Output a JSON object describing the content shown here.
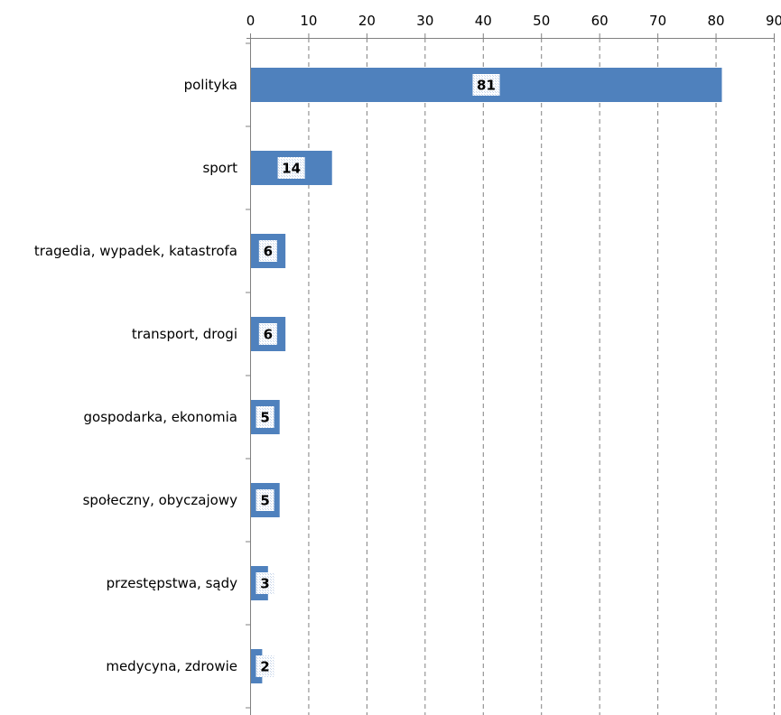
{
  "colors": {
    "bar": "#4f81bd",
    "label_box": "#dce6f1",
    "grid": "#808080",
    "axis": "#808080"
  },
  "chart_data": {
    "type": "bar",
    "orientation": "horizontal",
    "categories": [
      "polityka",
      "sport",
      "tragedia, wypadek, katastrofa",
      "transport, drogi",
      "gospodarka, ekonomia",
      "społeczny, obyczajowy",
      "przestępstwa, sądy",
      "medycyna, zdrowie"
    ],
    "values": [
      81,
      14,
      6,
      6,
      5,
      5,
      3,
      2
    ],
    "data_labels": [
      "81",
      "14",
      "6",
      "6",
      "5",
      "5",
      "3",
      "2"
    ],
    "xlim": [
      0,
      90
    ],
    "x_ticks": [
      "0",
      "10",
      "20",
      "30",
      "40",
      "50",
      "60",
      "70",
      "80",
      "90"
    ],
    "x_axis_position": "top",
    "grid": "vertical dashed",
    "legend": "none",
    "title": "",
    "xlabel": "",
    "ylabel": ""
  }
}
